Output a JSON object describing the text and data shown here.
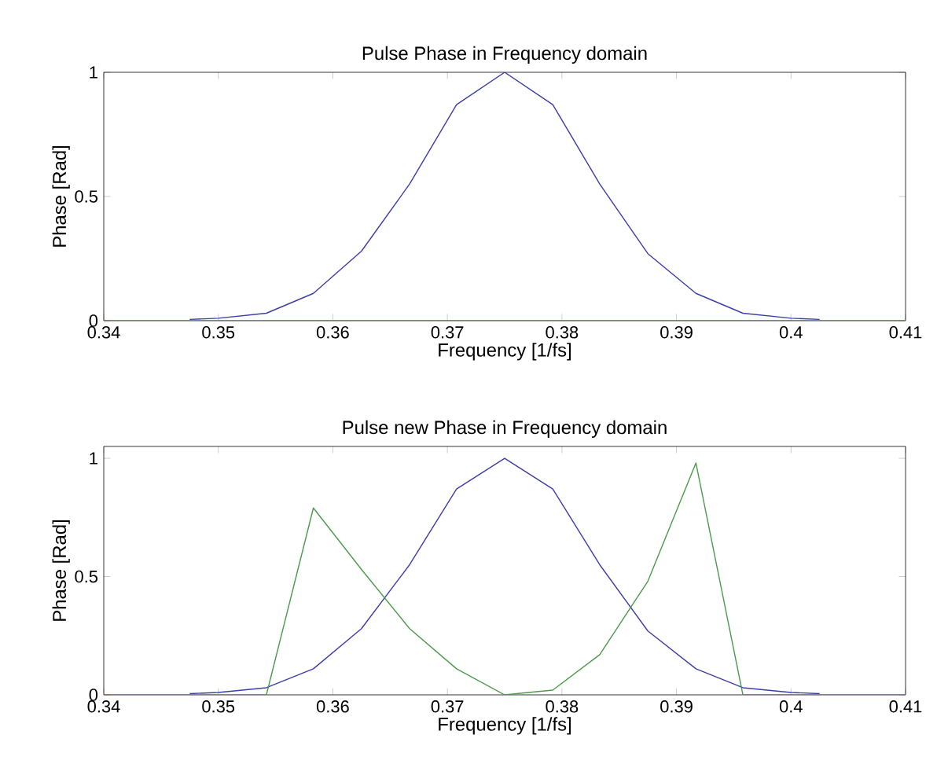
{
  "chart_data": [
    {
      "type": "line",
      "title": "Pulse Phase in Frequency domain",
      "xlabel": "Frequency [1/fs]",
      "ylabel": "Phase [Rad]",
      "xlim": [
        0.34,
        0.41
      ],
      "ylim": [
        0,
        1
      ],
      "xticks": [
        0.34,
        0.35,
        0.36,
        0.37,
        0.38,
        0.39,
        0.4,
        0.41
      ],
      "yticks": [
        0,
        0.5,
        1
      ],
      "series": [
        {
          "color": "#3c3ca8",
          "x": [
            0.3475,
            0.35,
            0.3542,
            0.3583,
            0.3625,
            0.3667,
            0.3708,
            0.375,
            0.3792,
            0.3833,
            0.3875,
            0.3917,
            0.3958,
            0.4,
            0.4025
          ],
          "values": [
            0.005,
            0.01,
            0.03,
            0.11,
            0.28,
            0.55,
            0.87,
            1,
            0.87,
            0.55,
            0.27,
            0.11,
            0.03,
            0.01,
            0.005
          ]
        },
        {
          "color": "#4a9a4a",
          "x": [
            0.34,
            0.41
          ],
          "values": [
            0,
            0
          ]
        }
      ]
    },
    {
      "type": "line",
      "title": "Pulse new Phase in Frequency domain",
      "xlabel": "Frequency [1/fs]",
      "ylabel": "Phase [Rad]",
      "xlim": [
        0.34,
        0.41
      ],
      "ylim": [
        0,
        1.05
      ],
      "xticks": [
        0.34,
        0.35,
        0.36,
        0.37,
        0.38,
        0.39,
        0.4,
        0.41
      ],
      "yticks": [
        0,
        0.5,
        1
      ],
      "series": [
        {
          "color": "#3c3ca8",
          "x": [
            0.3475,
            0.35,
            0.3542,
            0.3583,
            0.3625,
            0.3667,
            0.3708,
            0.375,
            0.3792,
            0.3833,
            0.3875,
            0.3917,
            0.3958,
            0.4,
            0.4025
          ],
          "values": [
            0.005,
            0.01,
            0.03,
            0.11,
            0.28,
            0.55,
            0.87,
            1,
            0.87,
            0.55,
            0.27,
            0.11,
            0.03,
            0.01,
            0.005
          ]
        },
        {
          "color": "#4a9a4a",
          "x": [
            0.34,
            0.3542,
            0.3583,
            0.3625,
            0.3667,
            0.3708,
            0.375,
            0.3792,
            0.3833,
            0.3875,
            0.3917,
            0.3958,
            0.41
          ],
          "values": [
            0,
            0,
            0.79,
            0.53,
            0.28,
            0.11,
            0,
            0.02,
            0.17,
            0.48,
            0.98,
            0,
            0
          ]
        }
      ]
    }
  ]
}
